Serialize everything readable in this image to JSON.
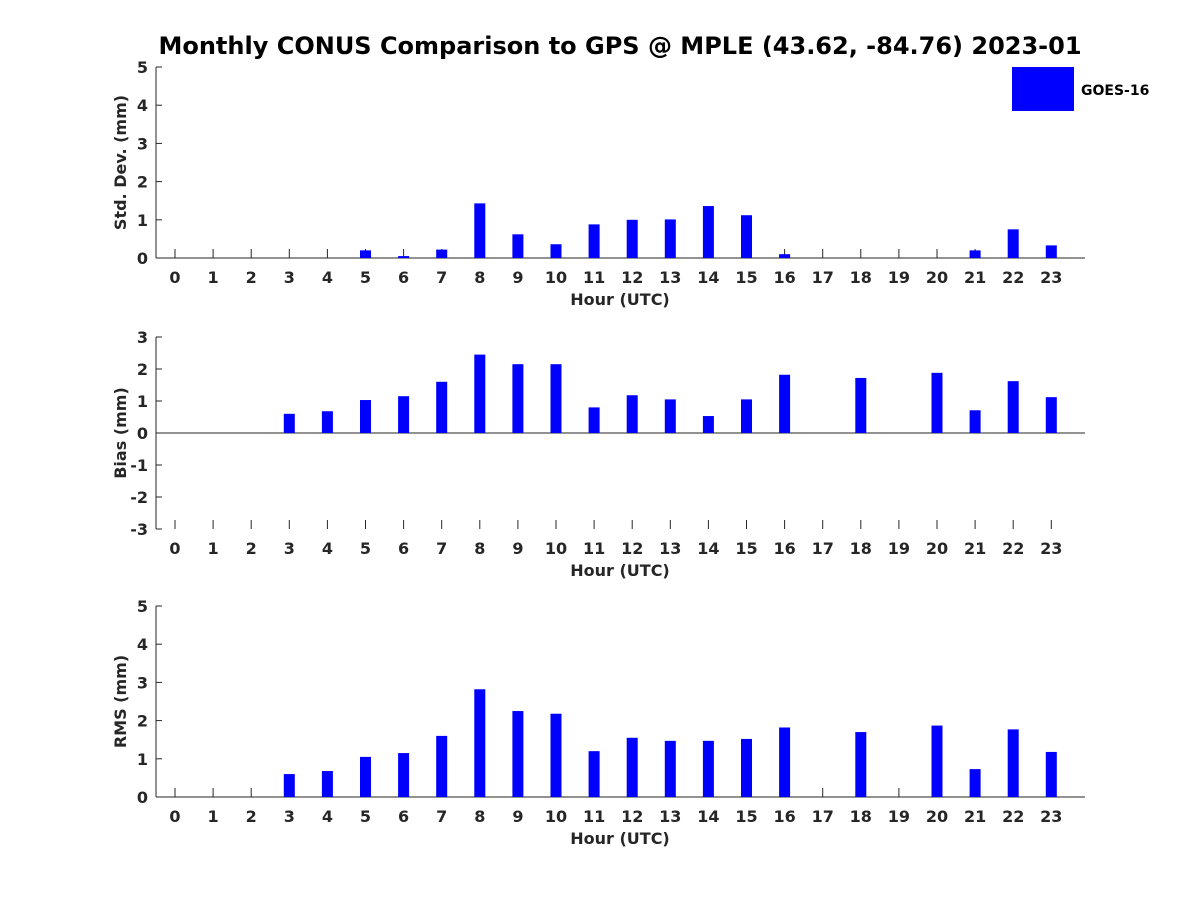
{
  "colors": {
    "bar": "#0000ff",
    "axis": "#262626"
  },
  "chart_data": {
    "type": "bar",
    "title": "Monthly CONUS Comparison to GPS @ MPLE (43.62, -84.76) 2023-01",
    "legend": {
      "position": "top-right",
      "entries": [
        {
          "name": "GOES-16",
          "color": "#0000ff"
        }
      ]
    },
    "categories": [
      0,
      1,
      2,
      3,
      4,
      5,
      6,
      7,
      8,
      9,
      10,
      11,
      12,
      13,
      14,
      15,
      16,
      17,
      18,
      19,
      20,
      21,
      22,
      23
    ],
    "panels": [
      {
        "name": "std",
        "ylabel": "Std. Dev. (mm)",
        "xlabel": "Hour (UTC)",
        "ylim": [
          0,
          5
        ],
        "yticks": [
          0,
          1,
          2,
          3,
          4,
          5
        ],
        "series": [
          {
            "name": "GOES-16",
            "values": [
              null,
              null,
              null,
              null,
              null,
              0.2,
              0.05,
              0.22,
              1.43,
              0.62,
              0.36,
              0.88,
              1.0,
              1.01,
              1.36,
              1.12,
              0.1,
              null,
              null,
              null,
              null,
              0.2,
              0.75,
              0.33
            ]
          }
        ]
      },
      {
        "name": "bias",
        "ylabel": "Bias (mm)",
        "xlabel": "Hour (UTC)",
        "ylim": [
          -3,
          3
        ],
        "yticks": [
          -3,
          -2,
          -1,
          0,
          1,
          2,
          3
        ],
        "series": [
          {
            "name": "GOES-16",
            "values": [
              null,
              null,
              null,
              0.6,
              0.68,
              1.03,
              1.15,
              1.6,
              2.45,
              2.15,
              2.15,
              0.8,
              1.18,
              1.05,
              0.53,
              1.05,
              1.82,
              null,
              1.72,
              null,
              1.88,
              0.71,
              1.62,
              1.12
            ]
          }
        ]
      },
      {
        "name": "rms",
        "ylabel": "RMS (mm)",
        "xlabel": "Hour (UTC)",
        "ylim": [
          0,
          5
        ],
        "yticks": [
          0,
          1,
          2,
          3,
          4,
          5
        ],
        "series": [
          {
            "name": "GOES-16",
            "values": [
              null,
              null,
              null,
              0.6,
              0.68,
              1.05,
              1.15,
              1.6,
              2.82,
              2.25,
              2.18,
              1.2,
              1.55,
              1.47,
              1.47,
              1.52,
              1.82,
              null,
              1.7,
              null,
              1.87,
              0.73,
              1.77,
              1.18
            ]
          }
        ]
      }
    ]
  }
}
